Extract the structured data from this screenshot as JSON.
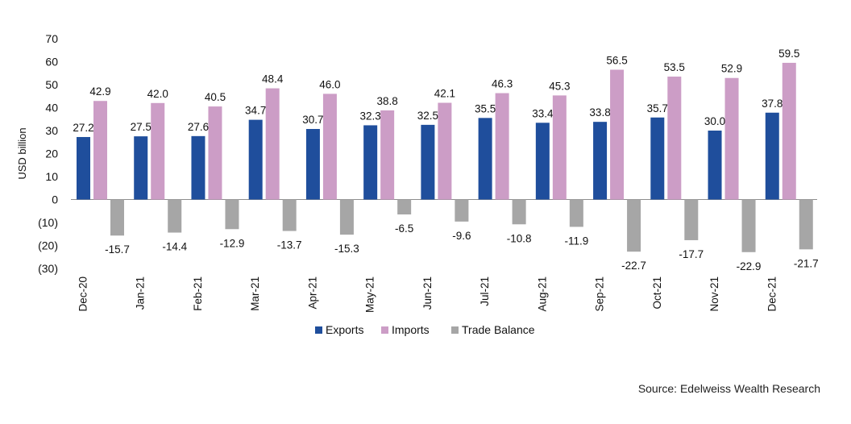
{
  "chart_data": {
    "type": "bar",
    "title": "",
    "xlabel": "",
    "ylabel": "USD billion",
    "ylim": [
      -30,
      70
    ],
    "yticks": [
      70,
      60,
      50,
      40,
      30,
      20,
      10,
      0,
      -10,
      -20,
      -30
    ],
    "ytick_labels": [
      "70",
      "60",
      "50",
      "40",
      "30",
      "20",
      "10",
      "0",
      "(10)",
      "(20)",
      "(30)"
    ],
    "categories": [
      "Dec-20",
      "Jan-21",
      "Feb-21",
      "Mar-21",
      "Apr-21",
      "May-21",
      "Jun-21",
      "Jul-21",
      "Aug-21",
      "Sep-21",
      "Oct-21",
      "Nov-21",
      "Dec-21"
    ],
    "series": [
      {
        "name": "Exports",
        "color": "#1f4e9c",
        "values": [
          27.2,
          27.5,
          27.6,
          34.7,
          30.7,
          32.3,
          32.5,
          35.5,
          33.4,
          33.8,
          35.7,
          30.0,
          37.8
        ],
        "labels": [
          "27.2",
          "27.5",
          "27.6",
          "34.7",
          "30.7",
          "32.3",
          "32.5",
          "35.5",
          "33.4",
          "33.8",
          "35.7",
          "30.0",
          "37.8"
        ]
      },
      {
        "name": "Imports",
        "color": "#cc9dc6",
        "values": [
          42.9,
          42.0,
          40.5,
          48.4,
          46.0,
          38.8,
          42.1,
          46.3,
          45.3,
          56.5,
          53.5,
          52.9,
          59.5
        ],
        "labels": [
          "42.9",
          "42.0",
          "40.5",
          "48.4",
          "46.0",
          "38.8",
          "42.1",
          "46.3",
          "45.3",
          "56.5",
          "53.5",
          "52.9",
          "59.5"
        ]
      },
      {
        "name": "Trade Balance",
        "color": "#a6a6a6",
        "values": [
          -15.7,
          -14.4,
          -12.9,
          -13.7,
          -15.3,
          -6.5,
          -9.6,
          -10.8,
          -11.9,
          -22.7,
          -17.7,
          -22.9,
          -21.7
        ],
        "labels": [
          "-15.7",
          "-14.4",
          "-12.9",
          "-13.7",
          "-15.3",
          "-6.5",
          "-9.6",
          "-10.8",
          "-11.9",
          "-22.7",
          "-17.7",
          "-22.9",
          "-21.7"
        ]
      }
    ],
    "legend_position": "bottom",
    "grid": false
  },
  "source": "Source: Edelweiss Wealth Research"
}
